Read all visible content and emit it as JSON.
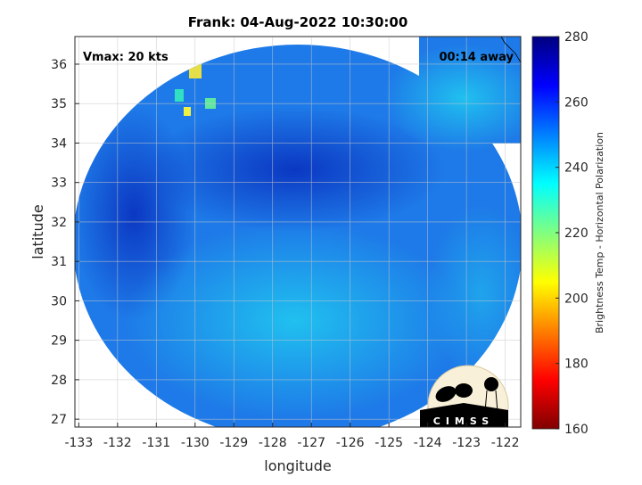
{
  "chart_data": {
    "type": "heatmap",
    "title": "Frank: 04-Aug-2022 10:30:00",
    "xlabel": "longitude",
    "ylabel": "latitude",
    "xlim": [
      -133.1,
      -121.6
    ],
    "ylim": [
      26.8,
      36.7
    ],
    "xticks": [
      -133,
      -132,
      -131,
      -130,
      -129,
      -128,
      -127,
      -126,
      -125,
      -124,
      -123,
      -122
    ],
    "yticks": [
      27,
      28,
      29,
      30,
      31,
      32,
      33,
      34,
      35,
      36
    ],
    "grid": true,
    "annotations": {
      "left": "Vmax: 20 kts",
      "right": "00:14 away"
    },
    "colorbar": {
      "label": "Brightness Temp - Horizontal Polarization",
      "range": [
        160,
        280
      ],
      "ticks": [
        160,
        180,
        200,
        220,
        240,
        260,
        280
      ],
      "colormap": "jet"
    },
    "colors": {
      "dominant": "#1e78e6",
      "dark_band": "#0a3cc8",
      "light_region": "#14b4f0"
    }
  },
  "logo": {
    "text": "CIMSS"
  }
}
